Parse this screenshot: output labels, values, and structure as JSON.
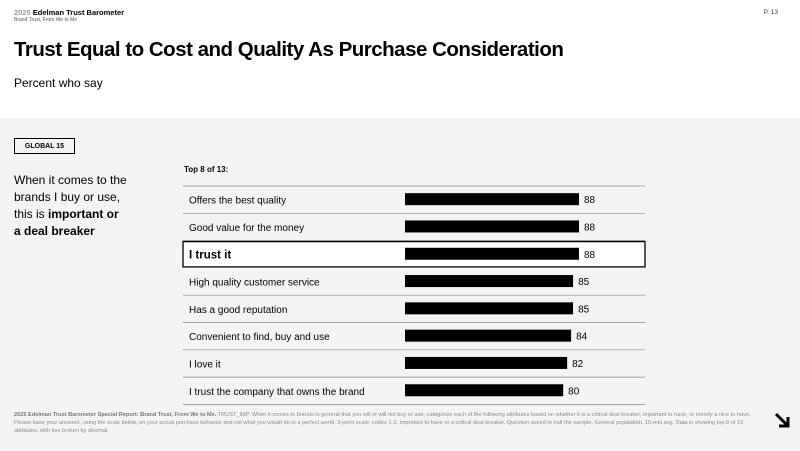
{
  "header": {
    "year": "2025",
    "report": "Edelman Trust Barometer",
    "subreport": "Brand Trust, From We to Me",
    "page": "P. 13"
  },
  "title": "Trust Equal to Cost and Quality As Purchase Consideration",
  "subtitle": "Percent who say",
  "badge": "GLOBAL 15",
  "question": {
    "line1": "When it comes to the",
    "line2": "brands I buy or use,",
    "line3_pre": "this is ",
    "line3_bold": "important or",
    "line4_bold": "a deal breaker"
  },
  "chart_label": "Top 8 of 13:",
  "chart_data": {
    "type": "bar",
    "orientation": "horizontal",
    "categories": [
      "Offers the best quality",
      "Good value for the money",
      "I trust it",
      "High quality customer service",
      "Has a good reputation",
      "Convenient to find, buy and use",
      "I love it",
      "I trust the company that owns the brand"
    ],
    "values": [
      88,
      88,
      88,
      85,
      85,
      84,
      82,
      80
    ],
    "highlighted": "I trust it",
    "bar_color": "#000000"
  },
  "footer": {
    "bold": "2025 Edelman Trust Barometer Special Report: Brand Trust, From We to Me.",
    "text": "TRUST_IMP. When it comes to brands in general that you will or will not buy or use, categorize each of the following attributes based on whether it is a critical deal breaker, important to have, or merely a nice to have. Please base your answers, using the scale below, on your actual purchase behavior and not what you would do in a perfect world. 3-point scale; codes 1-2, important to have or a critical deal breaker. Question asked to half the sample. General population, 15-mkt avg. Data is showing top 8 of 13 attributes, with ties broken by decimal."
  },
  "icons": {
    "next": "arrow-down-right-icon"
  }
}
